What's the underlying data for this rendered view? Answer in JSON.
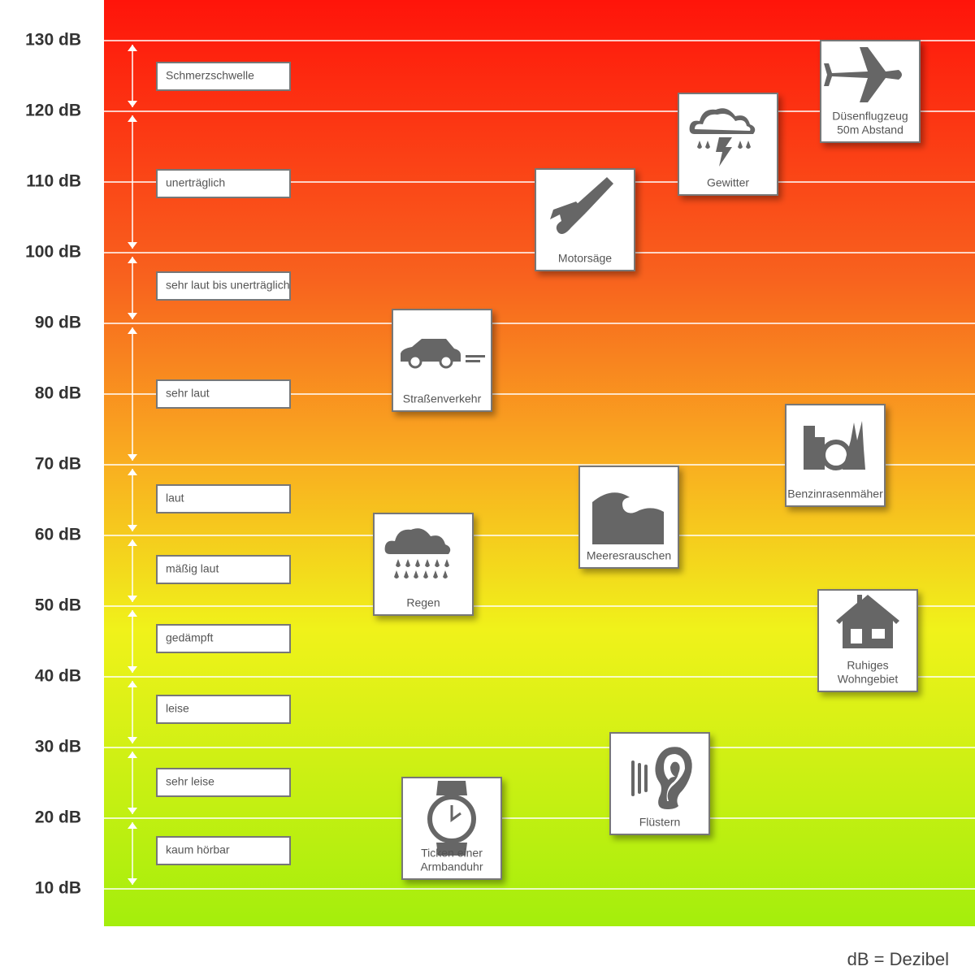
{
  "scale": {
    "labels": [
      "130 dB",
      "120 dB",
      "110 dB",
      "100 dB",
      "90 dB",
      "80 dB",
      "70 dB",
      "60 dB",
      "50 dB",
      "40 dB",
      "30 dB",
      "20 dB",
      "10 dB"
    ]
  },
  "ranges": [
    {
      "label": "Schmerzschwelle"
    },
    {
      "label": "unerträglich"
    },
    {
      "label": "sehr laut bis unerträglich"
    },
    {
      "label": "sehr laut"
    },
    {
      "label": "laut"
    },
    {
      "label": "mäßig laut"
    },
    {
      "label": "gedämpft"
    },
    {
      "label": "leise"
    },
    {
      "label": "sehr leise"
    },
    {
      "label": "kaum hörbar"
    }
  ],
  "items": [
    {
      "label": [
        "Düsenflugzeug",
        "50m Abstand"
      ]
    },
    {
      "label": [
        "Gewitter"
      ]
    },
    {
      "label": [
        "Motorsäge"
      ]
    },
    {
      "label": [
        "Straßenverkehr"
      ]
    },
    {
      "label": [
        "Benzinrasenmäher"
      ]
    },
    {
      "label": [
        "Meeresrauschen"
      ]
    },
    {
      "label": [
        "Regen"
      ]
    },
    {
      "label": [
        "Ruhiges",
        "Wohngebiet"
      ]
    },
    {
      "label": [
        "Flüstern"
      ]
    },
    {
      "label": [
        "Ticken einer",
        "Armbanduhr"
      ]
    }
  ],
  "footer": "dB = Dezibel"
}
